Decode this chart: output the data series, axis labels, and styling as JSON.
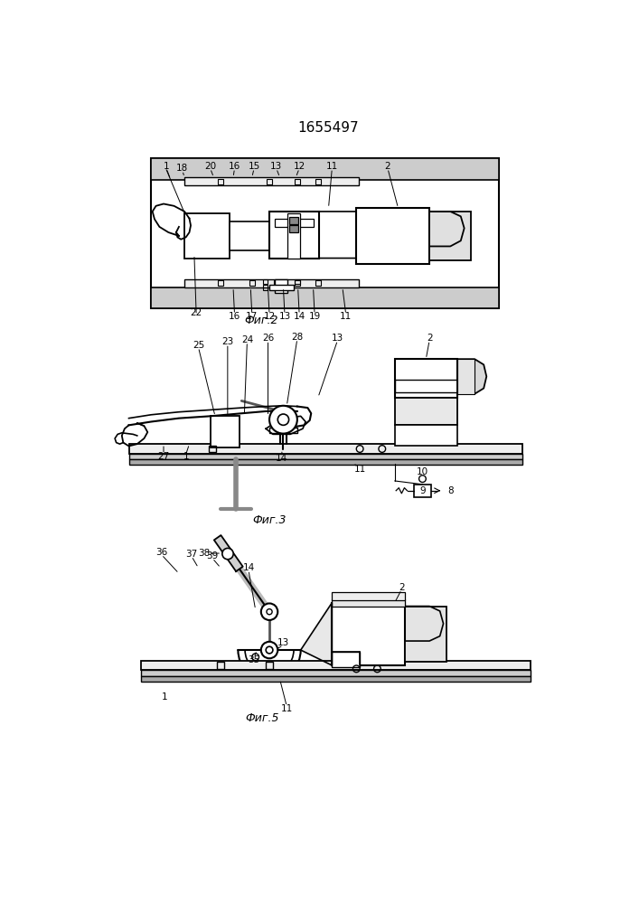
{
  "title": "1655497",
  "background": "#ffffff",
  "fig_label2": "Фиг.2",
  "fig_label3": "Фиг.3",
  "fig_label5": "Фиг.5"
}
